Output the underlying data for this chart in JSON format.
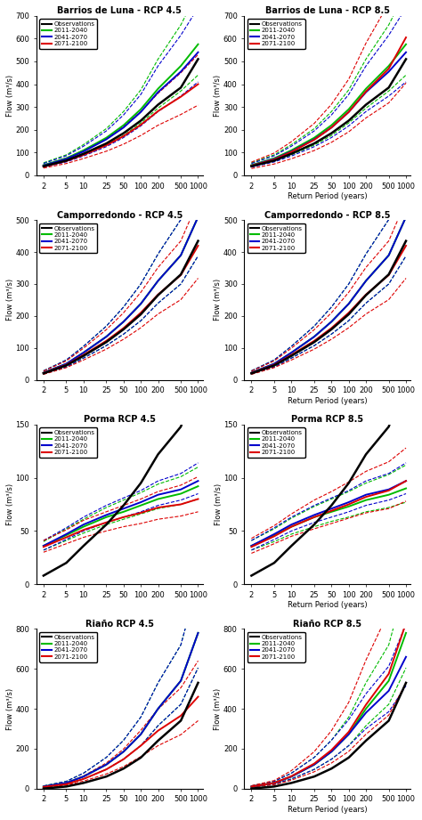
{
  "subplots": [
    {
      "title": "Barrios de Luna - RCP 4.5",
      "ylabel": "Flow (m³/s)",
      "show_xlabel": false,
      "ylim": [
        0,
        700
      ],
      "yticks": [
        0,
        100,
        200,
        300,
        400,
        500,
        600,
        700
      ],
      "obs": [
        40,
        65,
        95,
        140,
        185,
        240,
        310,
        385,
        510
      ],
      "p1_mid": [
        45,
        75,
        110,
        165,
        220,
        290,
        380,
        480,
        575
      ],
      "p1_lo": [
        38,
        62,
        90,
        133,
        175,
        230,
        295,
        370,
        440
      ],
      "p1_hi": [
        55,
        90,
        135,
        205,
        280,
        375,
        510,
        660,
        810
      ],
      "p2_mid": [
        43,
        72,
        105,
        158,
        210,
        278,
        365,
        455,
        540
      ],
      "p2_lo": [
        36,
        59,
        85,
        126,
        166,
        217,
        280,
        348,
        410
      ],
      "p2_hi": [
        52,
        86,
        128,
        195,
        265,
        355,
        480,
        615,
        735
      ],
      "p3_mid": [
        38,
        63,
        90,
        132,
        172,
        222,
        282,
        345,
        400
      ],
      "p3_lo": [
        32,
        52,
        74,
        106,
        137,
        175,
        220,
        267,
        308
      ],
      "p3_hi": [
        45,
        76,
        110,
        163,
        215,
        280,
        360,
        450,
        530
      ]
    },
    {
      "title": "Barrios de Luna - RCP 8.5",
      "ylabel": "Flow (m³/s)",
      "show_xlabel": true,
      "ylim": [
        0,
        700
      ],
      "yticks": [
        0,
        100,
        200,
        300,
        400,
        500,
        600,
        700
      ],
      "obs": [
        40,
        65,
        95,
        140,
        185,
        240,
        310,
        385,
        510
      ],
      "p1_mid": [
        45,
        75,
        110,
        165,
        220,
        290,
        380,
        480,
        575
      ],
      "p1_lo": [
        38,
        62,
        90,
        133,
        175,
        230,
        295,
        370,
        440
      ],
      "p1_hi": [
        55,
        90,
        135,
        205,
        280,
        375,
        510,
        660,
        810
      ],
      "p2_mid": [
        43,
        72,
        105,
        158,
        210,
        278,
        365,
        455,
        540
      ],
      "p2_lo": [
        36,
        59,
        85,
        126,
        166,
        217,
        280,
        348,
        410
      ],
      "p2_hi": [
        52,
        86,
        128,
        195,
        265,
        355,
        480,
        615,
        735
      ],
      "p3_mid": [
        42,
        70,
        103,
        156,
        210,
        278,
        368,
        468,
        605
      ],
      "p3_lo": [
        30,
        50,
        73,
        109,
        145,
        191,
        252,
        318,
        405
      ],
      "p3_hi": [
        58,
        98,
        148,
        228,
        312,
        422,
        580,
        755,
        990
      ]
    },
    {
      "title": "Camporredondo - RCP 4.5",
      "ylabel": "Flow (m³/s)",
      "show_xlabel": false,
      "ylim": [
        0,
        500
      ],
      "yticks": [
        0,
        100,
        200,
        300,
        400,
        500
      ],
      "obs": [
        20,
        45,
        75,
        118,
        158,
        205,
        265,
        330,
        435
      ],
      "p1_mid": [
        22,
        50,
        85,
        135,
        182,
        238,
        310,
        390,
        510
      ],
      "p1_lo": [
        18,
        40,
        68,
        107,
        143,
        185,
        240,
        300,
        388
      ],
      "p1_hi": [
        28,
        62,
        105,
        168,
        228,
        300,
        394,
        502,
        660
      ],
      "p2_mid": [
        22,
        50,
        85,
        135,
        182,
        238,
        310,
        390,
        510
      ],
      "p2_lo": [
        18,
        40,
        68,
        107,
        143,
        185,
        240,
        300,
        388
      ],
      "p2_hi": [
        28,
        62,
        105,
        168,
        228,
        300,
        394,
        502,
        660
      ],
      "p3_mid": [
        21,
        47,
        78,
        122,
        162,
        210,
        267,
        328,
        420
      ],
      "p3_lo": [
        17,
        38,
        62,
        96,
        127,
        163,
        206,
        251,
        318
      ],
      "p3_hi": [
        27,
        59,
        99,
        157,
        210,
        274,
        352,
        435,
        560
      ]
    },
    {
      "title": "Camporredondo - RCP 8.5",
      "ylabel": "Flow (m³/s)",
      "show_xlabel": true,
      "ylim": [
        0,
        500
      ],
      "yticks": [
        0,
        100,
        200,
        300,
        400,
        500
      ],
      "obs": [
        20,
        45,
        75,
        118,
        158,
        205,
        265,
        330,
        435
      ],
      "p1_mid": [
        22,
        50,
        85,
        135,
        182,
        238,
        310,
        390,
        510
      ],
      "p1_lo": [
        18,
        40,
        68,
        107,
        143,
        185,
        240,
        300,
        388
      ],
      "p1_hi": [
        28,
        62,
        105,
        168,
        228,
        300,
        394,
        502,
        660
      ],
      "p2_mid": [
        22,
        50,
        85,
        135,
        182,
        238,
        310,
        390,
        510
      ],
      "p2_lo": [
        18,
        40,
        68,
        107,
        143,
        185,
        240,
        300,
        388
      ],
      "p2_hi": [
        28,
        62,
        105,
        168,
        228,
        300,
        394,
        502,
        660
      ],
      "p3_mid": [
        21,
        47,
        78,
        122,
        162,
        210,
        267,
        328,
        420
      ],
      "p3_lo": [
        17,
        38,
        62,
        96,
        127,
        163,
        206,
        251,
        318
      ],
      "p3_hi": [
        27,
        59,
        99,
        157,
        210,
        274,
        352,
        435,
        560
      ]
    },
    {
      "title": "Porma RCP 4.5",
      "ylabel": "Flow (m³/s)",
      "show_xlabel": false,
      "ylim": [
        0,
        150
      ],
      "yticks": [
        0,
        50,
        100,
        150
      ],
      "obs": [
        8,
        20,
        36,
        56,
        74,
        95,
        122,
        148,
        195
      ],
      "p1_mid": [
        36,
        46,
        54,
        63,
        68,
        74,
        80,
        85,
        92
      ],
      "p1_lo": [
        32,
        41,
        48,
        56,
        61,
        66,
        71,
        75,
        80
      ],
      "p1_hi": [
        40,
        52,
        61,
        72,
        79,
        86,
        94,
        101,
        110
      ],
      "p2_mid": [
        36,
        47,
        56,
        65,
        71,
        77,
        84,
        89,
        97
      ],
      "p2_lo": [
        32,
        42,
        50,
        58,
        63,
        68,
        74,
        79,
        85
      ],
      "p2_hi": [
        41,
        53,
        63,
        74,
        81,
        88,
        97,
        104,
        114
      ],
      "p3_mid": [
        35,
        44,
        51,
        58,
        63,
        67,
        72,
        75,
        80
      ],
      "p3_lo": [
        30,
        38,
        44,
        50,
        54,
        57,
        61,
        64,
        68
      ],
      "p3_hi": [
        41,
        51,
        60,
        68,
        74,
        80,
        87,
        93,
        101
      ]
    },
    {
      "title": "Porma RCP 8.5",
      "ylabel": "Flow (m³/s)",
      "show_xlabel": true,
      "ylim": [
        0,
        150
      ],
      "yticks": [
        0,
        50,
        100,
        150
      ],
      "obs": [
        8,
        20,
        36,
        56,
        74,
        95,
        122,
        148,
        195
      ],
      "p1_mid": [
        36,
        46,
        54,
        63,
        68,
        73,
        79,
        84,
        90
      ],
      "p1_lo": [
        32,
        40,
        47,
        54,
        59,
        63,
        68,
        72,
        77
      ],
      "p1_hi": [
        41,
        52,
        62,
        73,
        80,
        87,
        95,
        103,
        112
      ],
      "p2_mid": [
        36,
        47,
        56,
        65,
        71,
        77,
        84,
        89,
        97
      ],
      "p2_lo": [
        32,
        42,
        50,
        58,
        63,
        68,
        74,
        79,
        85
      ],
      "p2_hi": [
        41,
        53,
        63,
        74,
        81,
        88,
        97,
        104,
        114
      ],
      "p3_mid": [
        35,
        45,
        54,
        63,
        69,
        75,
        82,
        88,
        97
      ],
      "p3_lo": [
        29,
        38,
        45,
        52,
        57,
        62,
        67,
        71,
        78
      ],
      "p3_hi": [
        43,
        55,
        66,
        79,
        87,
        96,
        106,
        115,
        128
      ]
    },
    {
      "title": "Riaño RCP 4.5",
      "ylabel": "Flow (m³/s)",
      "show_xlabel": false,
      "ylim": [
        0,
        800
      ],
      "yticks": [
        0,
        200,
        400,
        600,
        800
      ],
      "obs": [
        0,
        10,
        28,
        60,
        100,
        155,
        240,
        340,
        530
      ],
      "p1_mid": [
        10,
        28,
        60,
        120,
        185,
        272,
        400,
        540,
        780
      ],
      "p1_lo": [
        8,
        22,
        48,
        96,
        147,
        215,
        315,
        422,
        605
      ],
      "p1_hi": [
        13,
        36,
        77,
        156,
        242,
        358,
        530,
        720,
        1040
      ],
      "p2_mid": [
        10,
        28,
        60,
        120,
        185,
        272,
        400,
        540,
        780
      ],
      "p2_lo": [
        8,
        22,
        48,
        96,
        147,
        215,
        315,
        422,
        605
      ],
      "p2_hi": [
        13,
        36,
        77,
        156,
        242,
        358,
        530,
        720,
        1040
      ],
      "p3_mid": [
        8,
        22,
        48,
        96,
        147,
        215,
        290,
        365,
        460
      ],
      "p3_lo": [
        6,
        17,
        37,
        73,
        110,
        160,
        215,
        270,
        340
      ],
      "p3_hi": [
        11,
        29,
        63,
        128,
        198,
        292,
        398,
        505,
        640
      ]
    },
    {
      "title": "Riaño RCP 8.5",
      "ylabel": "Flow (m³/s)",
      "show_xlabel": true,
      "ylim": [
        0,
        800
      ],
      "yticks": [
        0,
        200,
        400,
        600,
        800
      ],
      "obs": [
        0,
        10,
        28,
        60,
        100,
        155,
        240,
        340,
        530
      ],
      "p1_mid": [
        10,
        28,
        60,
        120,
        185,
        272,
        400,
        540,
        780
      ],
      "p1_lo": [
        8,
        22,
        48,
        96,
        147,
        215,
        315,
        422,
        605
      ],
      "p1_hi": [
        13,
        36,
        77,
        156,
        242,
        358,
        530,
        720,
        1040
      ],
      "p2_mid": [
        10,
        28,
        60,
        120,
        185,
        272,
        380,
        490,
        660
      ],
      "p2_lo": [
        8,
        22,
        48,
        96,
        147,
        215,
        300,
        385,
        515
      ],
      "p2_hi": [
        13,
        36,
        77,
        156,
        242,
        345,
        475,
        613,
        825
      ],
      "p3_mid": [
        10,
        28,
        62,
        125,
        193,
        284,
        420,
        575,
        830
      ],
      "p3_lo": [
        7,
        19,
        42,
        84,
        128,
        186,
        272,
        368,
        528
      ],
      "p3_hi": [
        14,
        40,
        90,
        185,
        290,
        432,
        644,
        886,
        1290
      ]
    }
  ],
  "x_vals": [
    2,
    5,
    10,
    25,
    50,
    100,
    200,
    500,
    1000
  ],
  "x_ticks": [
    2,
    5,
    10,
    25,
    50,
    100,
    200,
    500,
    1000
  ],
  "x_tick_labels": [
    "2",
    "5",
    "10",
    "25",
    "50",
    "100",
    "200",
    "500",
    "1000"
  ],
  "xlim": [
    1.5,
    1200
  ],
  "colors": {
    "obs": "#000000",
    "p1": "#00bb00",
    "p2": "#0000cc",
    "p3": "#dd0000"
  },
  "legend_labels": [
    "Observations",
    "2011-2040",
    "2041-2070",
    "2071-2100"
  ]
}
